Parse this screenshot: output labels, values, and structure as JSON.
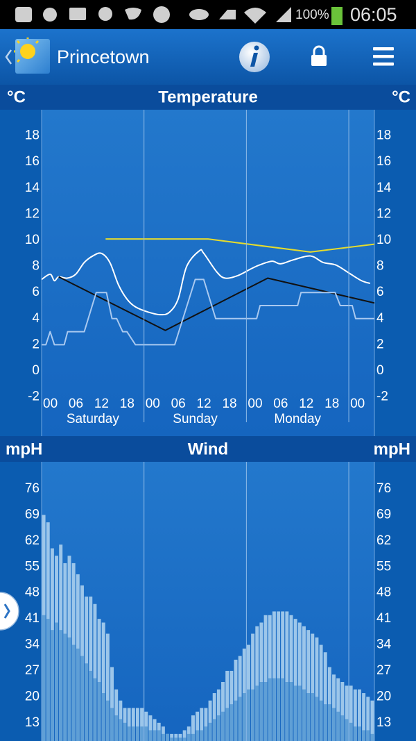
{
  "status_bar": {
    "battery": "100%",
    "time": "06:05"
  },
  "header": {
    "title": "Princetown"
  },
  "chart_data": [
    {
      "type": "line",
      "title": "Temperature",
      "ylabel": "°C",
      "xlim": [
        0,
        78
      ],
      "ylim": [
        -5,
        20
      ],
      "yticks": [
        -2,
        0,
        2,
        4,
        6,
        8,
        10,
        12,
        14,
        16,
        18
      ],
      "xticks": [
        {
          "value": 0,
          "label": "00"
        },
        {
          "value": 6,
          "label": "06"
        },
        {
          "value": 12,
          "label": "12"
        },
        {
          "value": 18,
          "label": "18"
        },
        {
          "value": 24,
          "label": "00"
        },
        {
          "value": 30,
          "label": "06"
        },
        {
          "value": 36,
          "label": "12"
        },
        {
          "value": 42,
          "label": "18"
        },
        {
          "value": 48,
          "label": "00"
        },
        {
          "value": 54,
          "label": "06"
        },
        {
          "value": 60,
          "label": "12"
        },
        {
          "value": 66,
          "label": "18"
        },
        {
          "value": 72,
          "label": "00"
        }
      ],
      "day_labels": [
        "Saturday",
        "Sunday",
        "Monday"
      ],
      "series": [
        {
          "color": "#ffffff",
          "smooth": true,
          "x": [
            0,
            2,
            3,
            4,
            6,
            8,
            10,
            12,
            14,
            16,
            18,
            20,
            22,
            25,
            28,
            30,
            32,
            34,
            37,
            38,
            41,
            43,
            46,
            49,
            51,
            54,
            56,
            59,
            63,
            66,
            69,
            72,
            75,
            77
          ],
          "values": [
            7.0,
            7.4,
            6.9,
            7.2,
            7.1,
            7.4,
            8.3,
            8.8,
            9.0,
            8.3,
            6.6,
            5.5,
            4.9,
            4.5,
            4.3,
            4.5,
            5.5,
            8.0,
            9.2,
            9.0,
            7.6,
            7.1,
            7.3,
            7.8,
            8.1,
            8.4,
            8.2,
            8.5,
            8.8,
            8.3,
            8.1,
            7.5,
            6.9,
            6.7
          ]
        },
        {
          "color": "#111111",
          "x": [
            4,
            29,
            53,
            78
          ],
          "values": [
            7.2,
            3.1,
            7.1,
            5.2
          ]
        },
        {
          "color": "#e6dc2c",
          "x": [
            15,
            39,
            63,
            78
          ],
          "values": [
            10.1,
            10.1,
            9.1,
            9.7
          ]
        },
        {
          "color": "#a9c9f0",
          "x": [
            0,
            1,
            2,
            3,
            5.3,
            6.1,
            10,
            12.8,
            15.2,
            16.5,
            17.6,
            19,
            20,
            22,
            31.2,
            36,
            38,
            40.8,
            50.4,
            51.2,
            60,
            60.8,
            68.8,
            70,
            72.8,
            73.6,
            78
          ],
          "values": [
            2,
            2,
            3,
            2,
            2,
            3,
            3,
            6,
            6,
            4,
            4,
            3,
            3,
            2,
            2,
            7,
            7,
            4,
            4,
            5,
            5,
            6,
            6,
            5,
            5,
            4,
            4
          ]
        }
      ]
    },
    {
      "type": "bar",
      "title": "Wind",
      "ylabel": "mpH",
      "xlim": [
        0,
        78
      ],
      "ylim": [
        8.1,
        83.3
      ],
      "yticks": [
        13,
        20,
        27,
        34,
        41,
        48,
        55,
        62,
        69,
        76
      ],
      "x": [
        0,
        1,
        2,
        3,
        4,
        5,
        6,
        7,
        8,
        9,
        10,
        11,
        12,
        13,
        14,
        15,
        16,
        17,
        18,
        19,
        20,
        21,
        22,
        23,
        24,
        25,
        26,
        27,
        28,
        29,
        30,
        31,
        32,
        33,
        34,
        35,
        36,
        37,
        38,
        39,
        40,
        41,
        42,
        43,
        44,
        45,
        46,
        47,
        48,
        49,
        50,
        51,
        52,
        53,
        54,
        55,
        56,
        57,
        58,
        59,
        60,
        61,
        62,
        63,
        64,
        65,
        66,
        67,
        68,
        69,
        70,
        71,
        72,
        73,
        74,
        75,
        76,
        77
      ],
      "series": [
        {
          "color": "#9cc6ea",
          "values": [
            69,
            67,
            60,
            58,
            61,
            56,
            58,
            56,
            53,
            50,
            47,
            47,
            45,
            41,
            40,
            37,
            28,
            22,
            19,
            17,
            17,
            17,
            17,
            17,
            16,
            15,
            14,
            13,
            12,
            10,
            10,
            10,
            10,
            11,
            12,
            15,
            16,
            17,
            17,
            19,
            21,
            22,
            24,
            27,
            27,
            30,
            31,
            33,
            34,
            37,
            39,
            40,
            42,
            42,
            43,
            43,
            43,
            43,
            42,
            41,
            40,
            39,
            38,
            37,
            36,
            34,
            32,
            28,
            26,
            25,
            24,
            23,
            23,
            22,
            22,
            21,
            20,
            19
          ]
        },
        {
          "color": "#5f9fd6",
          "values": [
            42,
            41,
            38,
            40,
            38,
            37,
            36,
            34,
            33,
            31,
            29,
            27,
            25,
            24,
            21,
            19,
            17,
            15,
            14,
            13,
            12,
            12,
            12,
            12,
            12,
            11,
            11,
            11,
            10,
            10,
            9,
            9,
            9,
            9,
            10,
            10,
            11,
            11,
            12,
            13,
            14,
            15,
            16,
            17,
            18,
            19,
            20,
            21,
            22,
            22,
            23,
            24,
            24,
            25,
            25,
            25,
            25,
            24,
            24,
            23,
            23,
            22,
            21,
            21,
            20,
            19,
            18,
            18,
            17,
            16,
            15,
            14,
            13,
            12,
            12,
            11,
            11,
            10
          ]
        }
      ]
    }
  ]
}
